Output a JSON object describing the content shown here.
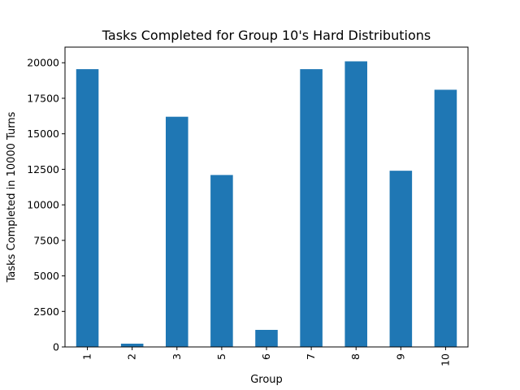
{
  "chart_data": {
    "type": "bar",
    "title": "Tasks Completed for Group 10's Hard Distributions",
    "xlabel": "Group",
    "ylabel": "Tasks Completed in 10000 Turns",
    "categories": [
      "1",
      "2",
      "3",
      "5",
      "6",
      "7",
      "8",
      "9",
      "10"
    ],
    "values": [
      19550,
      230,
      16200,
      12100,
      1200,
      19550,
      20100,
      12400,
      18100
    ],
    "ylim": [
      0,
      21100
    ],
    "yticks": [
      0,
      2500,
      5000,
      7500,
      10000,
      12500,
      15000,
      17500,
      20000
    ],
    "grid": false,
    "legend": "none",
    "bar_color": "#1f77b4"
  }
}
